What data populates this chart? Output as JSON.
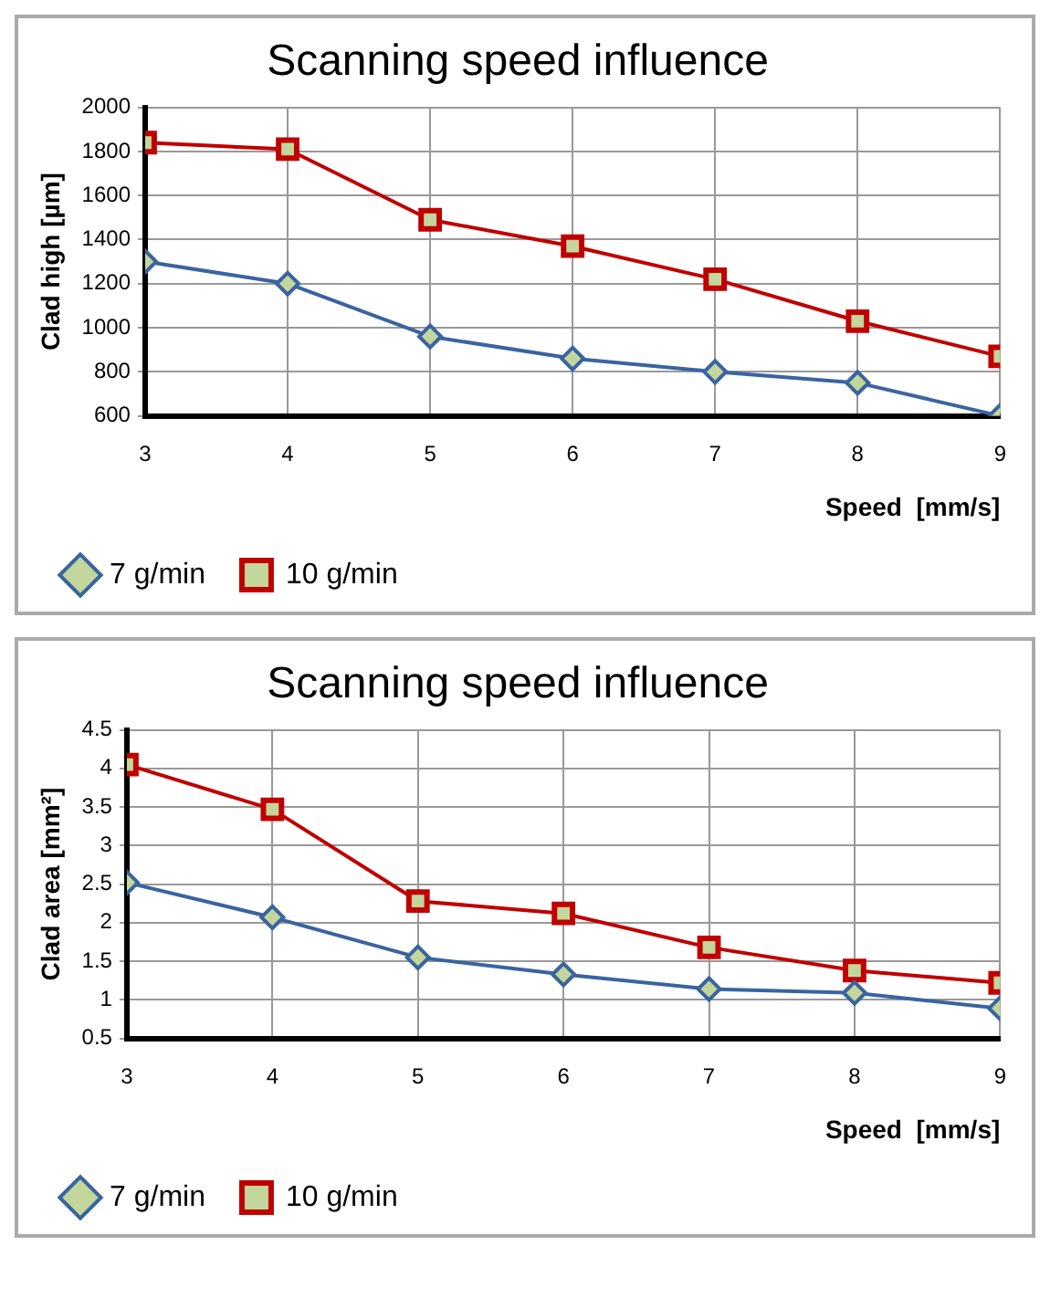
{
  "chart_data": [
    {
      "type": "line",
      "title": "Scanning speed influence",
      "xlabel": "Speed  [mm/s]",
      "ylabel": "Clad high [µm]",
      "x": [
        3,
        4,
        5,
        6,
        7,
        8,
        9
      ],
      "xlim": [
        3,
        9
      ],
      "xticks": [
        3,
        4,
        5,
        6,
        7,
        8,
        9
      ],
      "ylim": [
        600,
        2000
      ],
      "yticks": [
        600,
        800,
        1000,
        1200,
        1400,
        1600,
        1800,
        2000
      ],
      "grid": true,
      "legend": "bottom left",
      "series": [
        {
          "name": "7 g/min",
          "color": "#3a64a0",
          "marker": "diamond",
          "values": [
            1300,
            1200,
            960,
            860,
            800,
            750,
            600
          ]
        },
        {
          "name": "10 g/min",
          "color": "#c00000",
          "marker": "square",
          "values": [
            1840,
            1810,
            1490,
            1370,
            1220,
            1030,
            870
          ]
        }
      ]
    },
    {
      "type": "line",
      "title": "Scanning speed influence",
      "xlabel": "Speed  [mm/s]",
      "ylabel": "Clad area [mm²]",
      "x": [
        3,
        4,
        5,
        6,
        7,
        8,
        9
      ],
      "xlim": [
        3,
        9
      ],
      "xticks": [
        3,
        4,
        5,
        6,
        7,
        8,
        9
      ],
      "ylim": [
        0.5,
        4.5
      ],
      "yticks": [
        0.5,
        1,
        1.5,
        2,
        2.5,
        3,
        3.5,
        4,
        4.5
      ],
      "grid": true,
      "legend": "bottom left",
      "series": [
        {
          "name": "7 g/min",
          "color": "#3a64a0",
          "marker": "diamond",
          "values": [
            2.52,
            2.07,
            1.55,
            1.33,
            1.14,
            1.09,
            0.89
          ]
        },
        {
          "name": "10 g/min",
          "color": "#c00000",
          "marker": "square",
          "values": [
            4.05,
            3.47,
            2.28,
            2.12,
            1.68,
            1.38,
            1.22
          ]
        }
      ]
    }
  ]
}
